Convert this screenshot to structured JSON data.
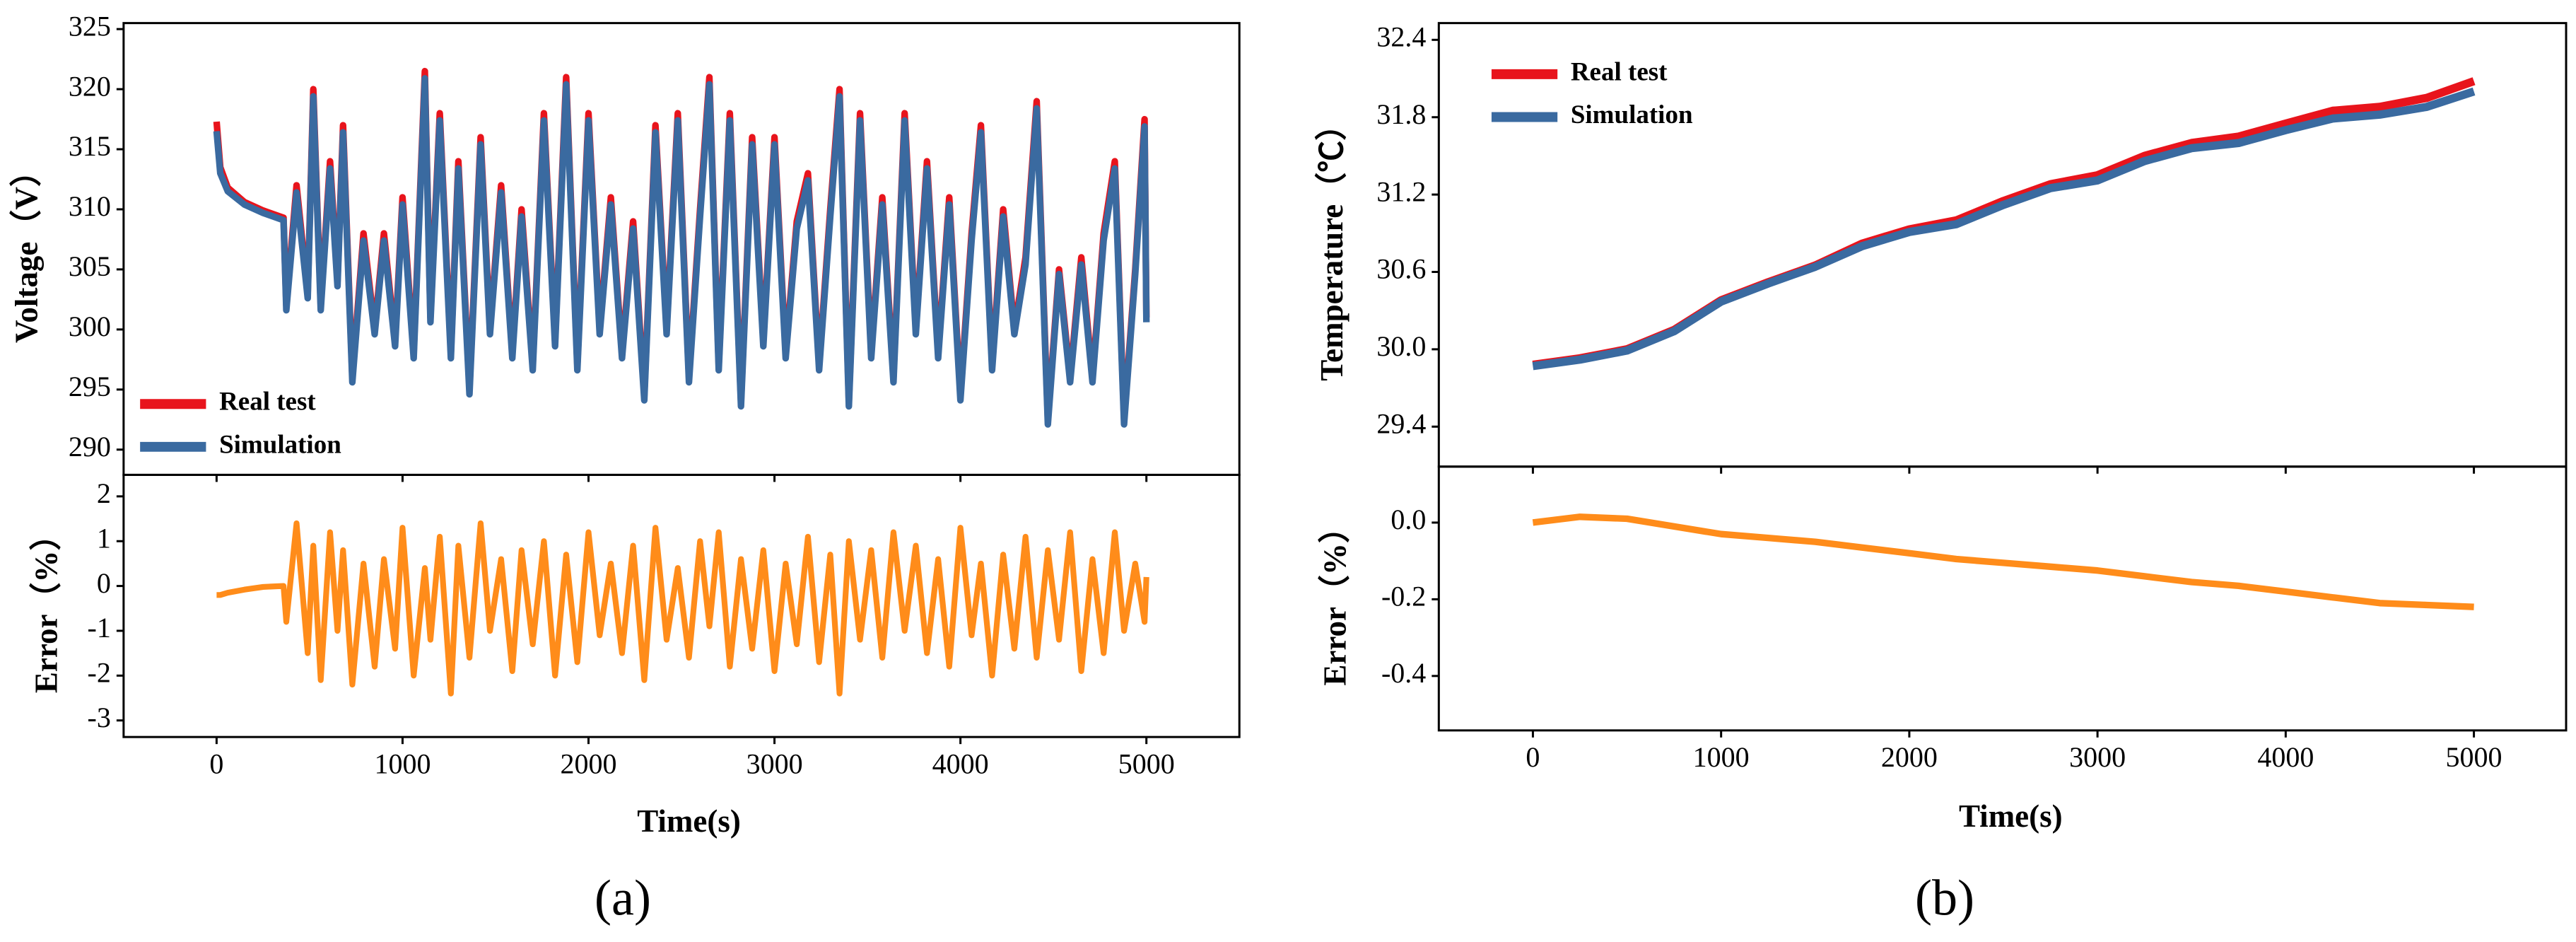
{
  "chart_data": [
    {
      "type": "line",
      "ylabel": "Voltage（V）",
      "legend": "lower left",
      "x": [
        0,
        20,
        60,
        150,
        250,
        360,
        375,
        430,
        490,
        520,
        560,
        610,
        650,
        680,
        730,
        790,
        850,
        900,
        960,
        1000,
        1060,
        1120,
        1150,
        1200,
        1260,
        1300,
        1360,
        1420,
        1470,
        1530,
        1590,
        1640,
        1700,
        1760,
        1820,
        1880,
        1940,
        2000,
        2060,
        2120,
        2180,
        2240,
        2300,
        2360,
        2420,
        2480,
        2540,
        2600,
        2650,
        2700,
        2760,
        2820,
        2880,
        2940,
        3000,
        3060,
        3120,
        3180,
        3240,
        3300,
        3350,
        3400,
        3460,
        3520,
        3580,
        3640,
        3700,
        3760,
        3820,
        3880,
        3940,
        4000,
        4060,
        4110,
        4170,
        4230,
        4290,
        4350,
        4410,
        4470,
        4530,
        4590,
        4650,
        4710,
        4770,
        4830,
        4880,
        4940,
        4990,
        5000
      ],
      "xlim": [
        -500,
        5500
      ],
      "xticks": [
        0,
        1000,
        2000,
        3000,
        4000,
        5000
      ],
      "ylim": [
        287.9,
        325.5
      ],
      "yticks": [
        290,
        295,
        300,
        305,
        310,
        315,
        320,
        325
      ],
      "series": [
        {
          "name": "Real test",
          "color": "#e8141c",
          "values": [
            317.3,
            313.5,
            311.8,
            310.6,
            309.9,
            309.3,
            302,
            312,
            303,
            320,
            302,
            314,
            304,
            317,
            296,
            308,
            300,
            308,
            299,
            311,
            298,
            321.5,
            301,
            318,
            298,
            314,
            295,
            316,
            300,
            312,
            298,
            310,
            297,
            318,
            299,
            321,
            297,
            318,
            300,
            311,
            298,
            309,
            294.5,
            317,
            300,
            318,
            296,
            310,
            321,
            297,
            318,
            294,
            316,
            299,
            316,
            298,
            309,
            313,
            297,
            310,
            320,
            294,
            318,
            298,
            311,
            296,
            318,
            300,
            314,
            298,
            311,
            294.5,
            308,
            317,
            297,
            310,
            300,
            306,
            319,
            292.5,
            305,
            296,
            306,
            296,
            308,
            314,
            292.5,
            305,
            317.5,
            301
          ]
        },
        {
          "name": "Simulation",
          "color": "#3a6aa0",
          "values": [
            316.5,
            313,
            311.5,
            310.4,
            309.7,
            309.1,
            301.6,
            311.4,
            302.6,
            319.4,
            301.6,
            313.4,
            303.6,
            316.4,
            295.6,
            307.4,
            299.6,
            307.4,
            298.6,
            310.4,
            297.6,
            320.9,
            300.6,
            317.4,
            297.6,
            313.4,
            294.6,
            315.4,
            299.6,
            311.4,
            297.6,
            309.4,
            296.6,
            317.4,
            298.6,
            320.4,
            296.6,
            317.4,
            299.6,
            310.4,
            297.6,
            308.4,
            294.1,
            316.4,
            299.6,
            317.4,
            295.6,
            309.4,
            320.4,
            296.6,
            317.4,
            293.6,
            315.4,
            298.6,
            315.4,
            297.6,
            308.4,
            312.4,
            296.6,
            309.4,
            319.4,
            293.6,
            317.4,
            297.6,
            310.4,
            295.6,
            317.4,
            299.6,
            313.4,
            297.6,
            310.4,
            294.1,
            307.4,
            316.4,
            296.6,
            309.4,
            299.6,
            305.4,
            318.4,
            292.1,
            304.6,
            295.6,
            305.4,
            295.6,
            307.4,
            313.4,
            292.1,
            304.6,
            316.9,
            300.6
          ]
        }
      ]
    },
    {
      "type": "line",
      "xlabel": "Time(s)",
      "ylabel": "Error（%）",
      "x": [
        0,
        20,
        60,
        150,
        250,
        360,
        375,
        430,
        490,
        520,
        560,
        610,
        650,
        680,
        730,
        790,
        850,
        900,
        960,
        1000,
        1060,
        1120,
        1150,
        1200,
        1260,
        1300,
        1360,
        1420,
        1470,
        1530,
        1590,
        1640,
        1700,
        1760,
        1820,
        1880,
        1940,
        2000,
        2060,
        2120,
        2180,
        2240,
        2300,
        2360,
        2420,
        2480,
        2540,
        2600,
        2650,
        2700,
        2760,
        2820,
        2880,
        2940,
        3000,
        3060,
        3120,
        3180,
        3240,
        3300,
        3350,
        3400,
        3460,
        3520,
        3580,
        3640,
        3700,
        3760,
        3820,
        3880,
        3940,
        4000,
        4060,
        4110,
        4170,
        4230,
        4290,
        4350,
        4410,
        4470,
        4530,
        4590,
        4650,
        4710,
        4770,
        4830,
        4880,
        4940,
        4990,
        5000
      ],
      "xlim": [
        -500,
        5500
      ],
      "xticks": [
        0,
        1000,
        2000,
        3000,
        4000,
        5000
      ],
      "ylim": [
        -3.37,
        2.48
      ],
      "yticks": [
        2,
        1,
        0,
        -1,
        -2,
        -3
      ],
      "series": [
        {
          "color": "#ff8c1a",
          "values": [
            -0.2,
            -0.2,
            -0.15,
            -0.08,
            -0.02,
            0,
            -0.8,
            1.4,
            -1.5,
            0.9,
            -2.1,
            1.2,
            -1.0,
            0.8,
            -2.2,
            0.5,
            -1.8,
            0.6,
            -1.4,
            1.3,
            -2.0,
            0.4,
            -1.2,
            1.1,
            -2.4,
            0.9,
            -1.6,
            1.4,
            -1.0,
            0.6,
            -1.9,
            0.8,
            -1.3,
            1.0,
            -2.0,
            0.7,
            -1.7,
            1.2,
            -1.1,
            0.5,
            -1.5,
            0.9,
            -2.1,
            1.3,
            -1.2,
            0.4,
            -1.6,
            1.0,
            -0.9,
            1.2,
            -1.8,
            0.6,
            -1.4,
            0.8,
            -1.9,
            0.5,
            -1.3,
            1.1,
            -1.7,
            0.7,
            -2.4,
            1.0,
            -1.2,
            0.8,
            -1.6,
            1.2,
            -1.0,
            0.9,
            -1.5,
            0.6,
            -1.8,
            1.3,
            -1.1,
            0.5,
            -2.0,
            0.7,
            -1.4,
            1.1,
            -1.6,
            0.8,
            -1.2,
            1.2,
            -1.9,
            0.6,
            -1.5,
            1.2,
            -1.0,
            0.5,
            -0.8,
            0.2
          ]
        }
      ]
    },
    {
      "type": "line",
      "ylabel": "Temperature（℃）",
      "legend": "upper left",
      "x": [
        0,
        250,
        500,
        750,
        1000,
        1250,
        1500,
        1750,
        2000,
        2250,
        2500,
        2750,
        3000,
        3250,
        3500,
        3750,
        4000,
        4250,
        4500,
        4750,
        5000
      ],
      "xlim": [
        -500,
        5490
      ],
      "xticks": [
        0,
        1000,
        2000,
        3000,
        4000,
        5000
      ],
      "ylim": [
        29.09,
        32.53
      ],
      "yticks": [
        29.4,
        {
          "value": 30,
          "label": "30.0"
        },
        30.6,
        31.2,
        31.8,
        32.4
      ],
      "series": [
        {
          "name": "Real test",
          "color": "#e8141c",
          "values": [
            29.88,
            29.93,
            30.0,
            30.15,
            30.38,
            30.52,
            30.65,
            30.82,
            30.93,
            31.0,
            31.15,
            31.28,
            31.35,
            31.5,
            31.6,
            31.65,
            31.75,
            31.85,
            31.88,
            31.95,
            32.08
          ]
        },
        {
          "name": "Simulation",
          "color": "#3a6aa0",
          "values": [
            29.87,
            29.92,
            29.99,
            30.14,
            30.37,
            30.51,
            30.64,
            30.8,
            30.91,
            30.97,
            31.12,
            31.25,
            31.31,
            31.46,
            31.56,
            31.6,
            31.7,
            31.79,
            31.82,
            31.88,
            32.0
          ]
        }
      ]
    },
    {
      "type": "line",
      "xlabel": "Time(s)",
      "ylabel": "Error（%）",
      "x": [
        0,
        250,
        500,
        750,
        1000,
        1250,
        1500,
        1750,
        2000,
        2250,
        2500,
        2750,
        3000,
        3250,
        3500,
        3750,
        4000,
        4250,
        4500,
        4750,
        5000
      ],
      "xlim": [
        -500,
        5490
      ],
      "xticks": [
        0,
        1000,
        2000,
        3000,
        4000,
        5000
      ],
      "ylim": [
        -0.542,
        0.146
      ],
      "yticks": [
        {
          "value": 0,
          "label": "0.0"
        },
        -0.2,
        -0.4
      ],
      "series": [
        {
          "color": "#ff8c1a",
          "values": [
            0.0,
            0.015,
            0.01,
            -0.01,
            -0.03,
            -0.04,
            -0.05,
            -0.065,
            -0.08,
            -0.095,
            -0.105,
            -0.115,
            -0.125,
            -0.14,
            -0.155,
            -0.165,
            -0.18,
            -0.195,
            -0.21,
            -0.215,
            -0.22
          ]
        }
      ]
    }
  ],
  "captions": [
    "(a)",
    "(b)"
  ]
}
